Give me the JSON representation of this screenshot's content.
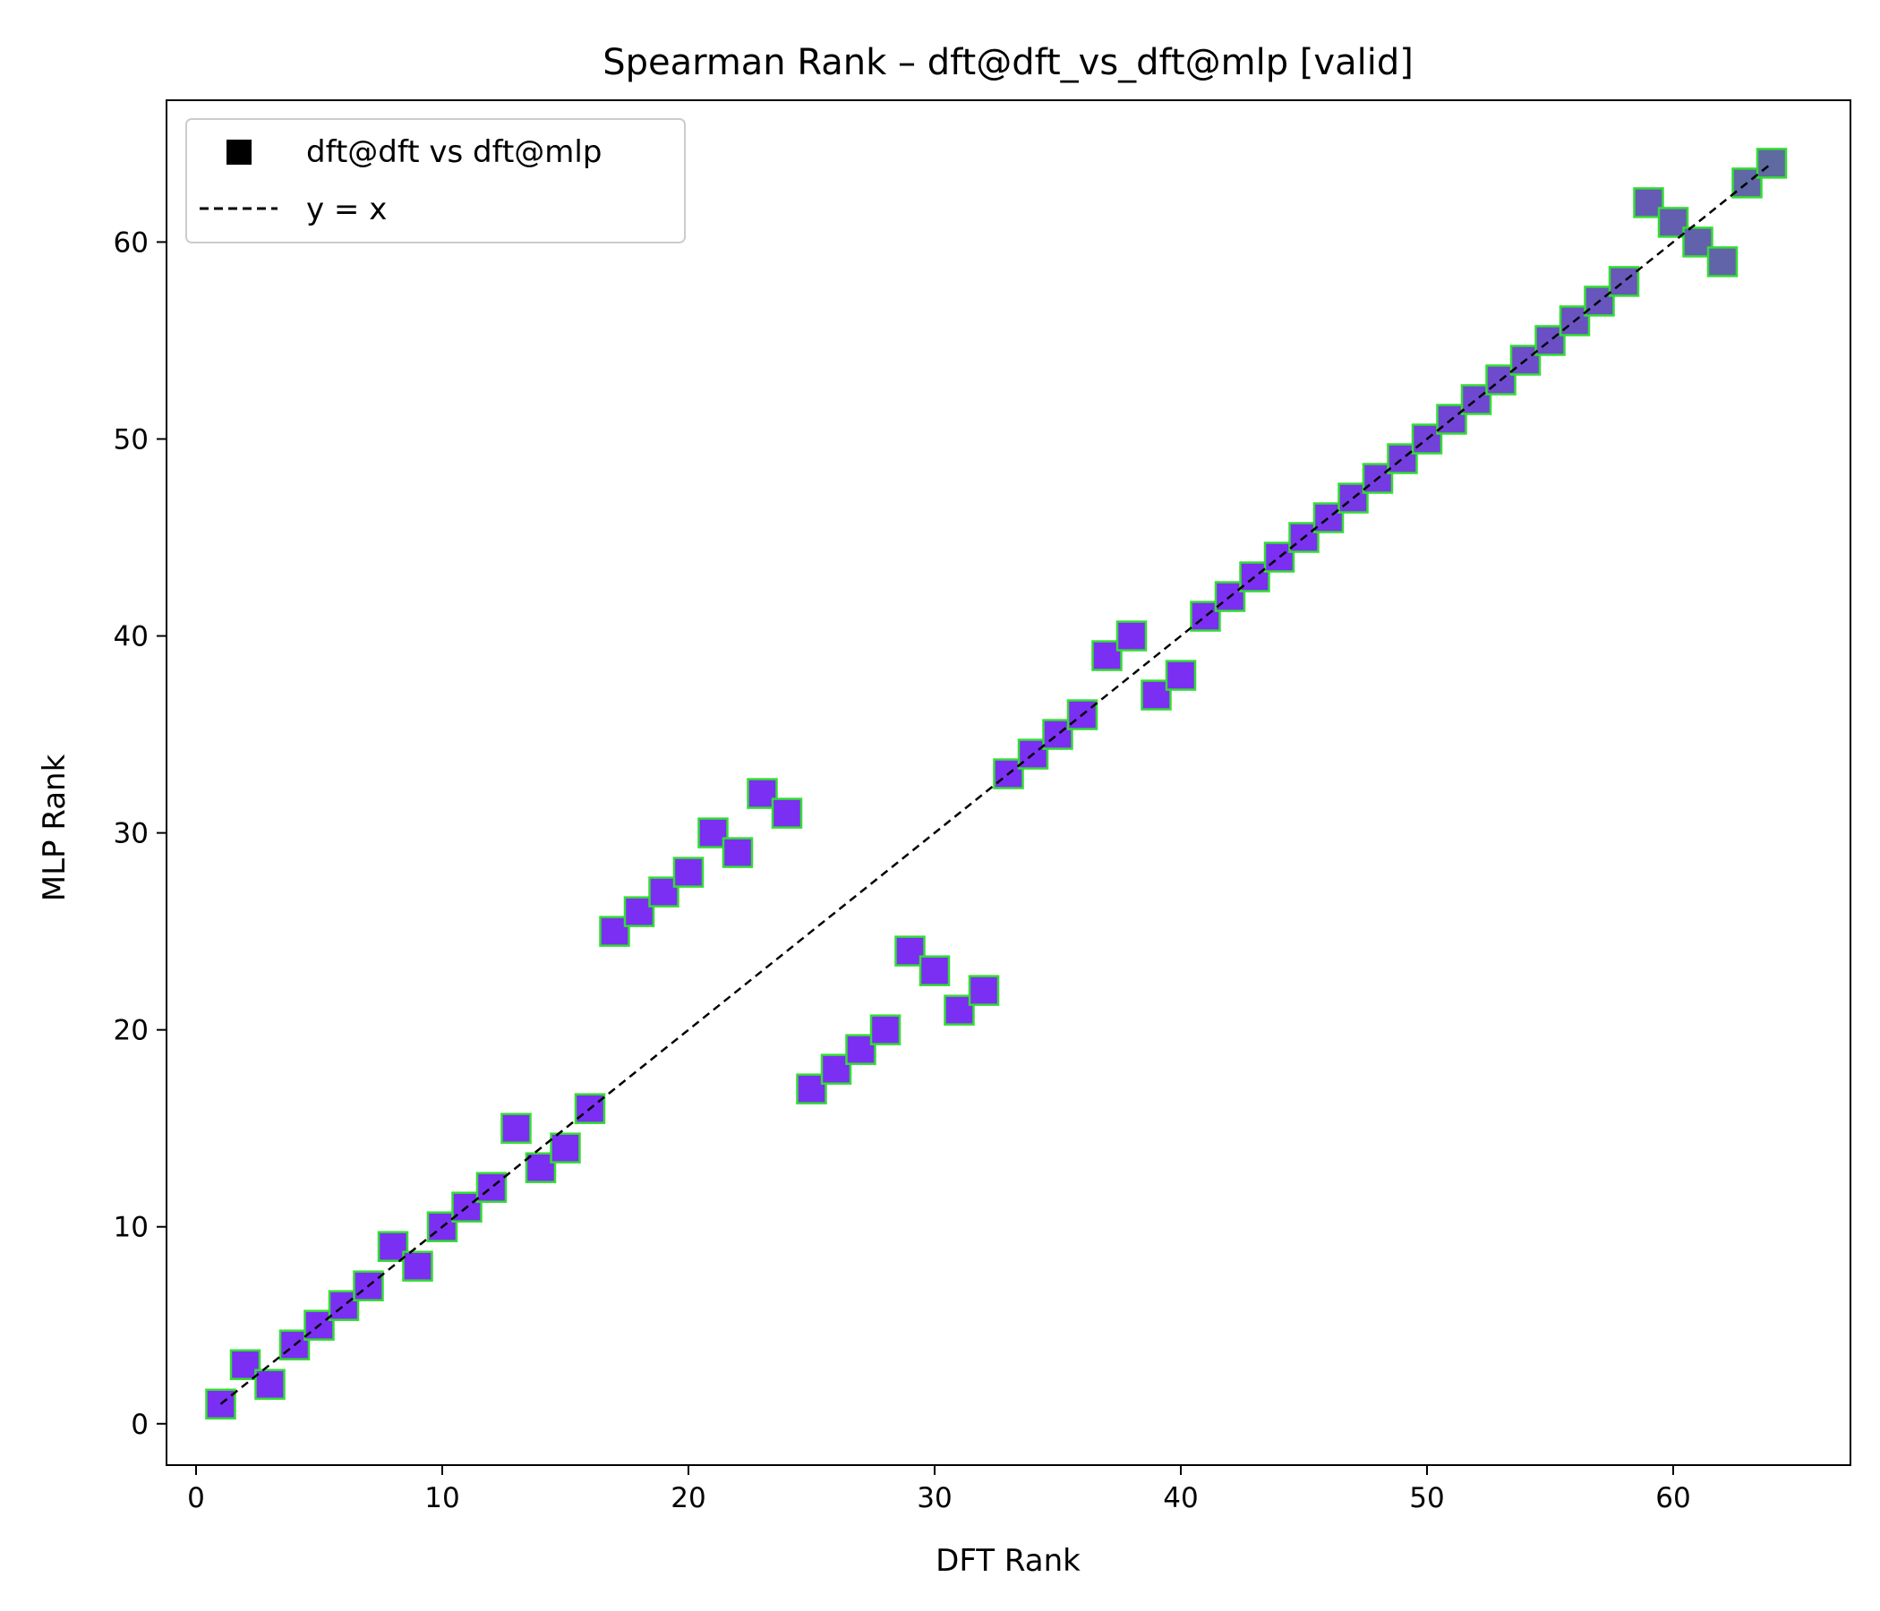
{
  "chart_data": {
    "type": "scatter",
    "title": "Spearman Rank – dft@dft_vs_dft@mlp [valid]",
    "xlabel": "DFT Rank",
    "ylabel": "MLP Rank",
    "xlim": [
      -1.2,
      67.2
    ],
    "ylim": [
      -2.1,
      67.2
    ],
    "xticks": [
      0,
      10,
      20,
      30,
      40,
      50,
      60
    ],
    "yticks": [
      0,
      10,
      20,
      30,
      40,
      50,
      60
    ],
    "grid": false,
    "legend_position": "top-left",
    "series": [
      {
        "name": "dft@dft vs dft@mlp",
        "marker": "square",
        "x": [
          1,
          2,
          3,
          4,
          5,
          6,
          7,
          8,
          9,
          10,
          11,
          12,
          13,
          14,
          15,
          16,
          17,
          18,
          19,
          20,
          21,
          22,
          23,
          24,
          25,
          26,
          27,
          28,
          29,
          30,
          31,
          32,
          33,
          34,
          35,
          36,
          37,
          38,
          39,
          40,
          41,
          42,
          43,
          44,
          45,
          46,
          47,
          48,
          49,
          50,
          51,
          52,
          53,
          54,
          55,
          56,
          57,
          58,
          59,
          60,
          61,
          62,
          63,
          64
        ],
        "y": [
          1,
          3,
          2,
          4,
          5,
          6,
          7,
          9,
          8,
          10,
          11,
          12,
          15,
          13,
          14,
          16,
          25,
          26,
          27,
          28,
          30,
          29,
          32,
          31,
          17,
          18,
          19,
          20,
          24,
          23,
          21,
          22,
          33,
          34,
          35,
          36,
          39,
          40,
          37,
          38,
          41,
          42,
          43,
          44,
          45,
          46,
          47,
          48,
          49,
          50,
          51,
          52,
          53,
          54,
          55,
          56,
          57,
          58,
          62,
          61,
          60,
          59,
          63,
          64
        ]
      },
      {
        "name": "y = x",
        "style": "dashed",
        "x": [
          1,
          64
        ],
        "y": [
          1,
          64
        ]
      }
    ],
    "colors": {
      "marker_fill_start": "#7B2FF2",
      "marker_fill_end": "#5E6AA0",
      "marker_edge": "#33DD33",
      "line": "#000000"
    }
  }
}
